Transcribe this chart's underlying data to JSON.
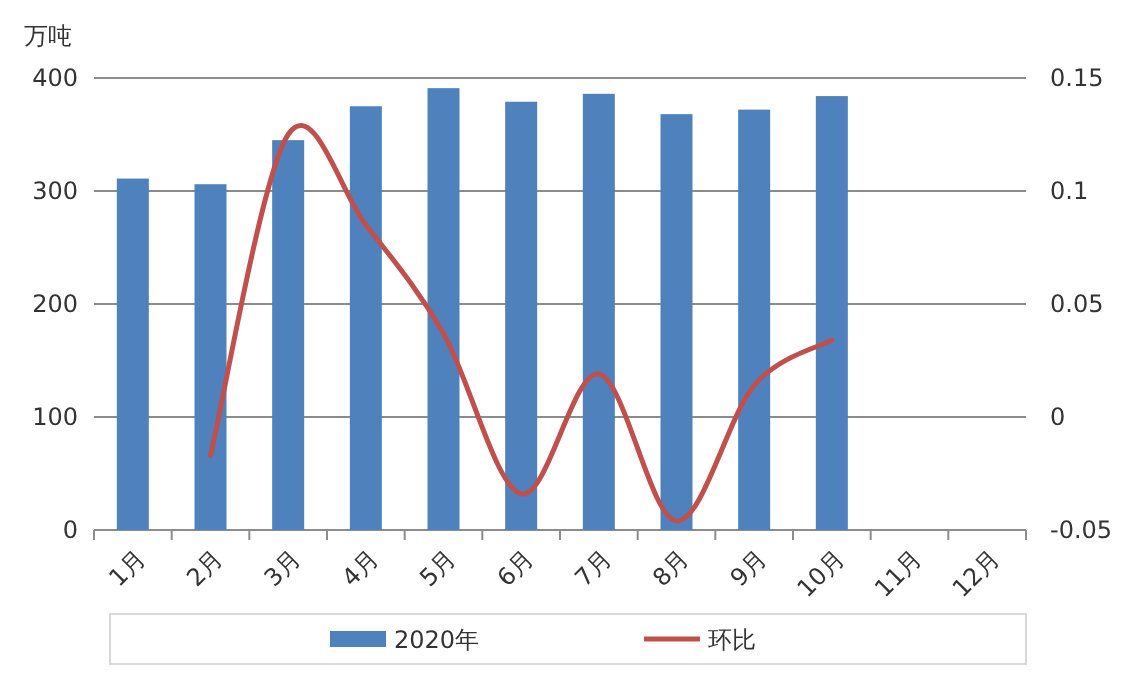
{
  "chart_data": {
    "type": "bar",
    "ylabel": "万吨",
    "categories": [
      "1月",
      "2月",
      "3月",
      "4月",
      "5月",
      "6月",
      "7月",
      "8月",
      "9月",
      "10月",
      "11月",
      "12月"
    ],
    "series": [
      {
        "name": "2020年",
        "color": "#4f81bd",
        "values": [
          311,
          306,
          345,
          375,
          391,
          379,
          386,
          368,
          372,
          384,
          null,
          null
        ]
      },
      {
        "name": "环比",
        "type": "line",
        "axis": "y2",
        "color": "#c0504d",
        "values": [
          null,
          -0.017,
          0.125,
          0.085,
          0.037,
          -0.034,
          0.019,
          -0.046,
          0.014,
          0.034,
          null,
          null
        ]
      }
    ],
    "ylim": [
      0,
      400
    ],
    "yticks": [
      0,
      100,
      200,
      300,
      400
    ],
    "y2lim": [
      -0.05,
      0.15
    ],
    "y2ticks": [
      -0.05,
      0,
      0.05,
      0.1,
      0.15
    ],
    "grid": "y",
    "legend": "bottom"
  }
}
